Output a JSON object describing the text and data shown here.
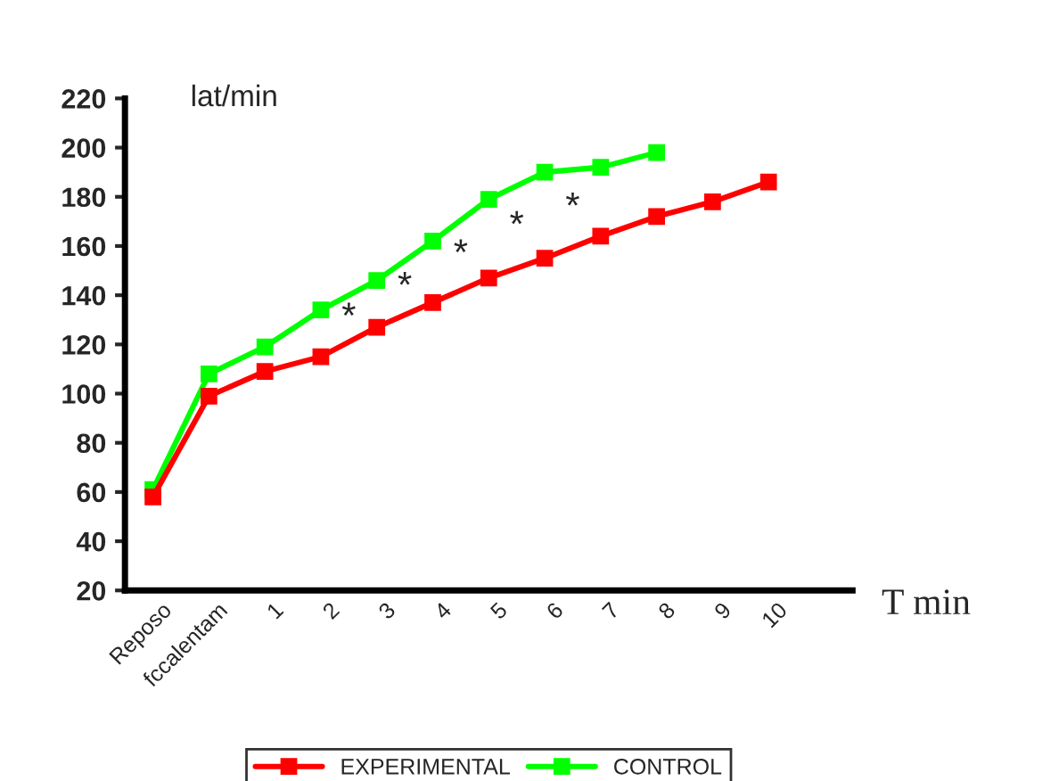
{
  "chart_data": {
    "type": "line",
    "xlabel": "T min",
    "ylabel": "lat/min",
    "categories": [
      "Reposo",
      "fccalentam",
      "1",
      "2",
      "3",
      "4",
      "5",
      "6",
      "7",
      "8",
      "9",
      "10",
      null
    ],
    "series": [
      {
        "name": "EXPERIMENTAL",
        "color": "#ff0000",
        "values": [
          58,
          99,
          109,
          115,
          127,
          137,
          147,
          155,
          164,
          172,
          178,
          186,
          null
        ]
      },
      {
        "name": "CONTROL",
        "color": "#00ff00",
        "values": [
          61,
          108,
          119,
          134,
          146,
          162,
          179,
          190,
          192,
          198,
          null,
          null,
          null
        ]
      }
    ],
    "ylim": [
      20,
      220
    ],
    "yticks": [
      20,
      40,
      60,
      80,
      100,
      120,
      140,
      160,
      180,
      200,
      220
    ],
    "annotations": [
      "*",
      "*",
      "*",
      "*",
      "*"
    ],
    "marker": "square",
    "line_style": "solid",
    "grid": false,
    "legend": "bottom"
  }
}
